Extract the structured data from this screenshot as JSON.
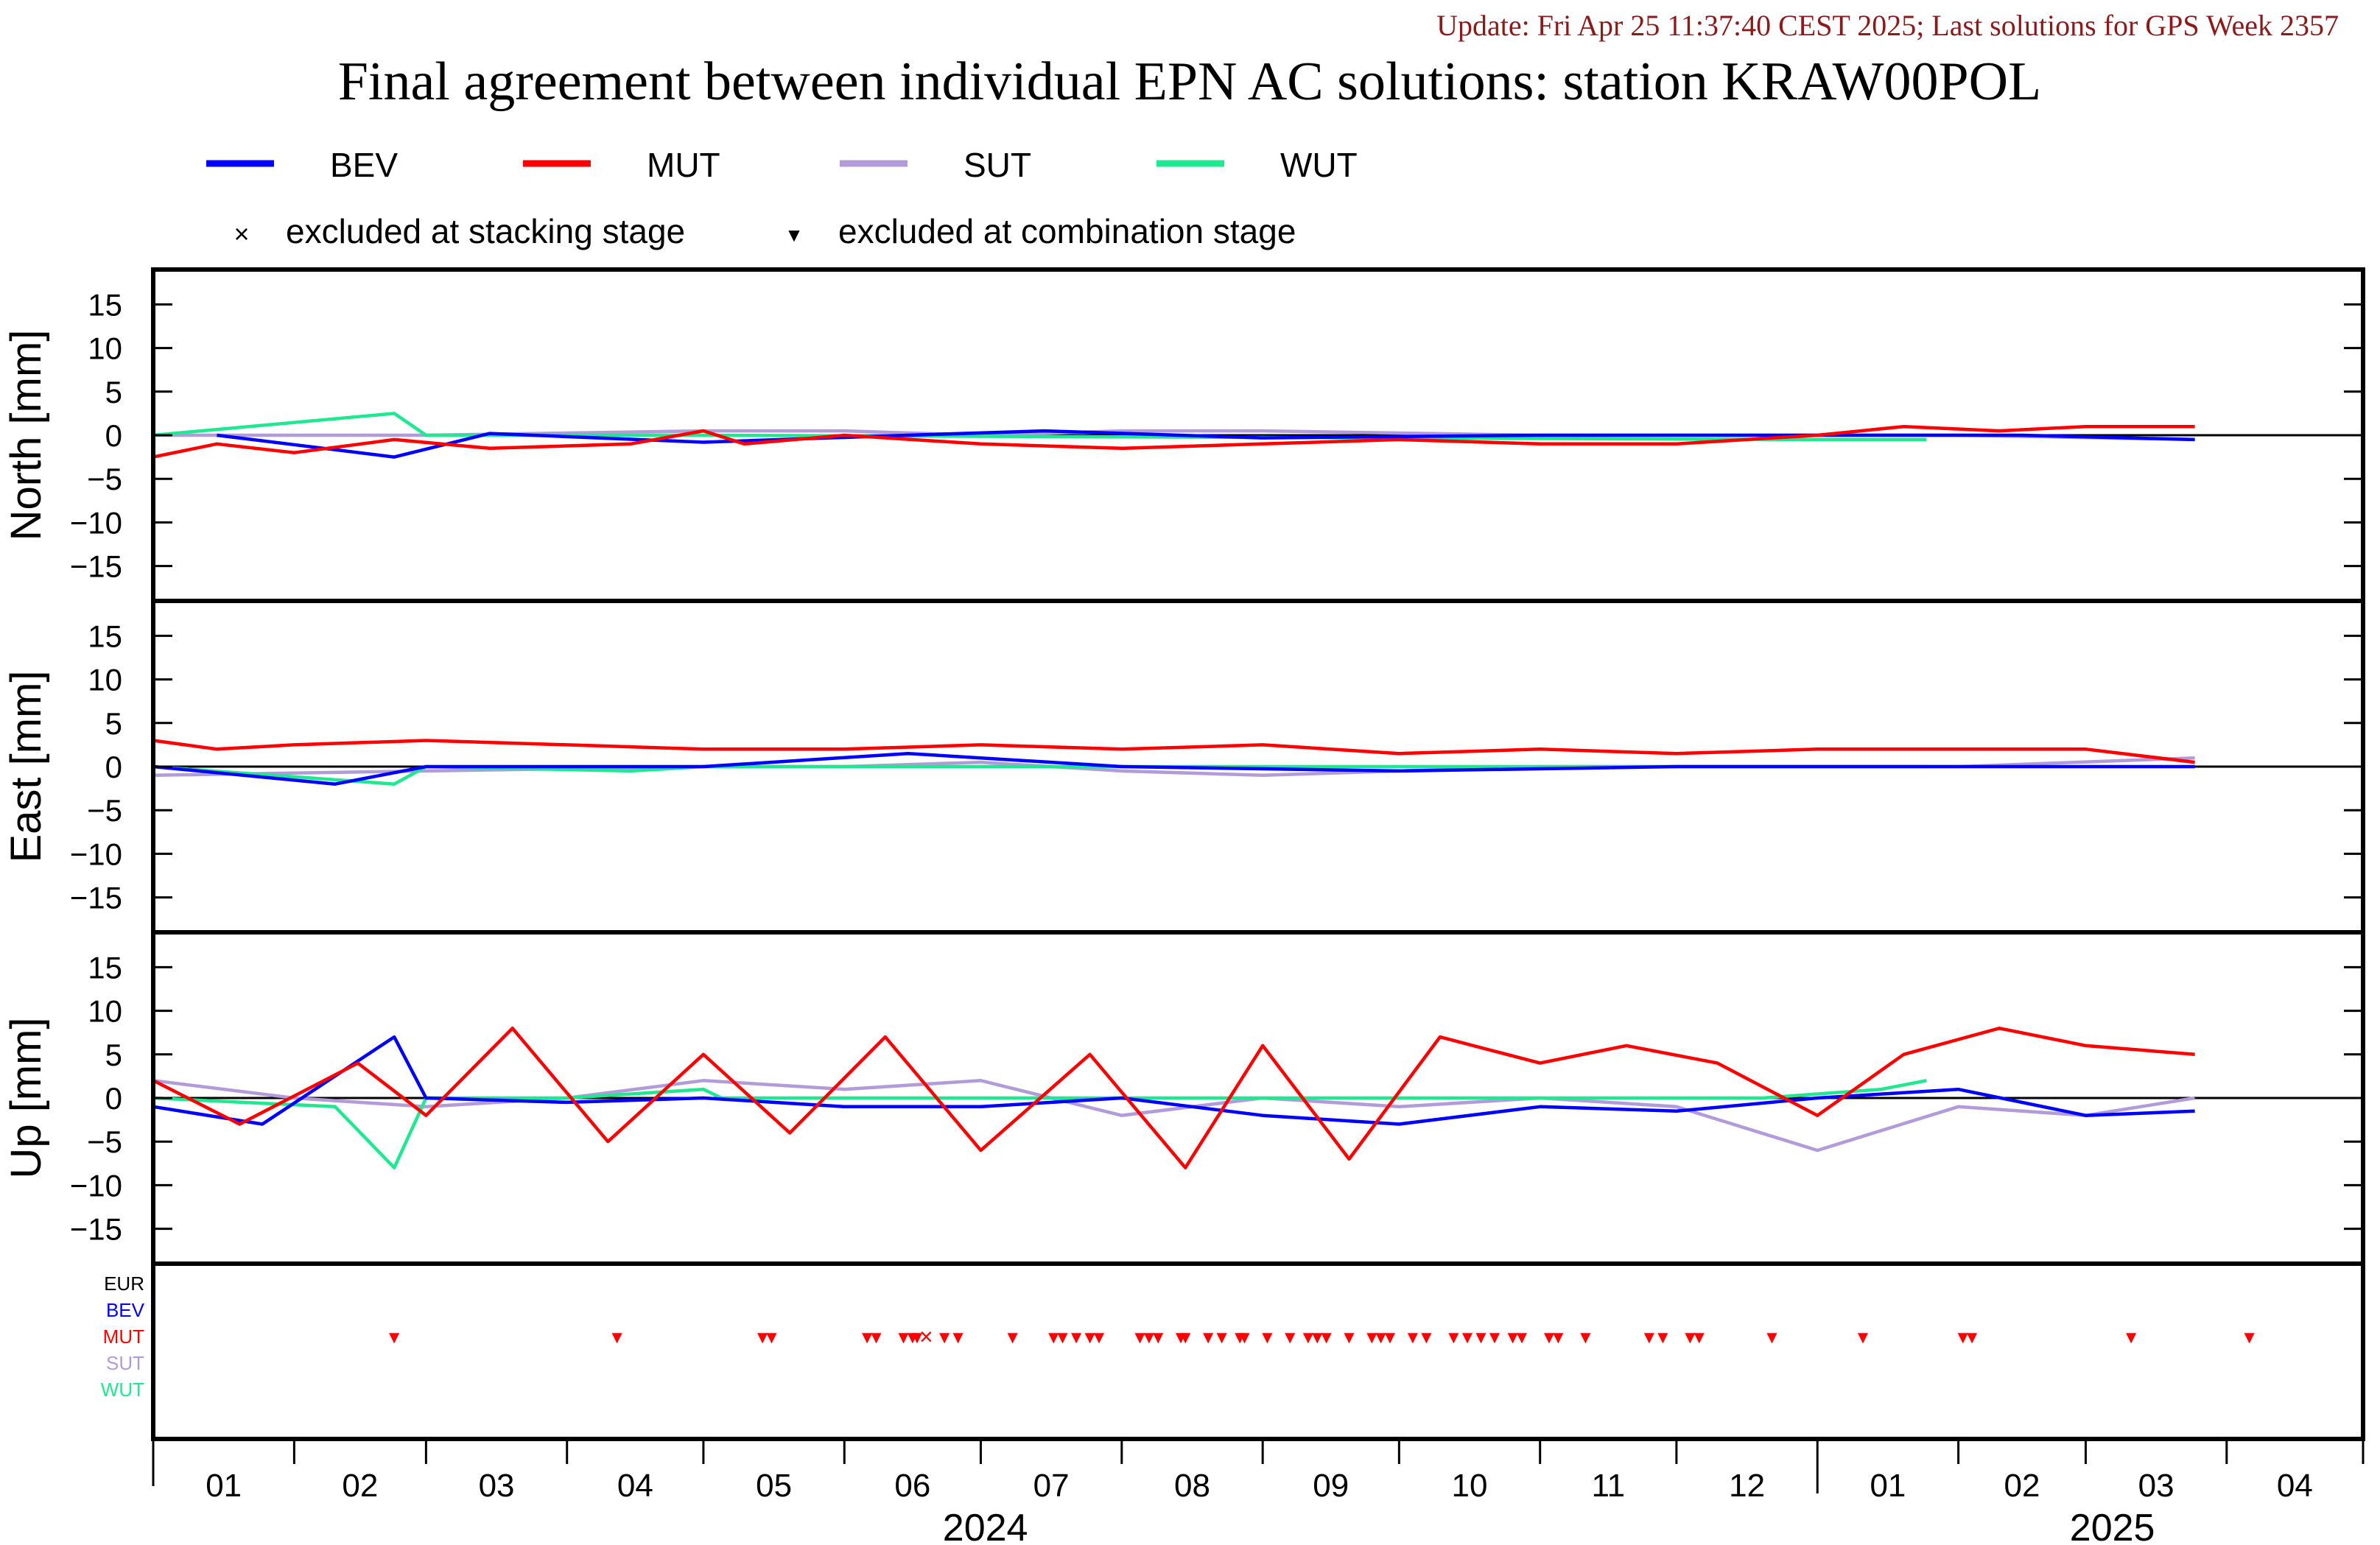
{
  "header": {
    "update_text": "Update: Fri Apr 25 11:37:40 CEST 2025; Last solutions for GPS Week 2357",
    "update_color": "#8b1a1a",
    "title": "Final agreement between individual EPN AC solutions: station KRAW00POL"
  },
  "legend": {
    "series": [
      {
        "name": "BEV",
        "color": "#0000ff"
      },
      {
        "name": "MUT",
        "color": "#ff0000"
      },
      {
        "name": "SUT",
        "color": "#b19cd9"
      },
      {
        "name": "WUT",
        "color": "#1ee890"
      }
    ],
    "markers": [
      {
        "symbol": "×",
        "label": "excluded at stacking stage"
      },
      {
        "symbol": "▼",
        "label": "excluded at combination stage"
      }
    ]
  },
  "chart_data": {
    "type": "line",
    "x_axis": {
      "month_ticks": [
        "01",
        "02",
        "03",
        "04",
        "05",
        "06",
        "07",
        "08",
        "09",
        "10",
        "11",
        "12",
        "01",
        "02",
        "03",
        "04"
      ],
      "years": [
        "2024",
        "2025"
      ],
      "range": [
        "2024-01-01",
        "2025-04-30"
      ]
    },
    "panels": [
      {
        "ylabel": "North [mm]",
        "ylim": [
          -19,
          19
        ],
        "yticks": [
          15,
          10,
          5,
          0,
          -5,
          -10,
          -15
        ],
        "series": [
          {
            "name": "BEV",
            "points": [
              [
                "2024-01-15",
                0.0
              ],
              [
                "2024-02-23",
                -2.5
              ],
              [
                "2024-03-15",
                0.2
              ],
              [
                "2024-05-01",
                -0.8
              ],
              [
                "2024-06-15",
                0.0
              ],
              [
                "2024-07-15",
                0.5
              ],
              [
                "2024-09-01",
                -0.3
              ],
              [
                "2024-11-01",
                0.0
              ],
              [
                "2025-01-01",
                0.0
              ],
              [
                "2025-02-15",
                0.0
              ],
              [
                "2025-03-25",
                -0.5
              ]
            ]
          },
          {
            "name": "MUT",
            "points": [
              [
                "2024-01-01",
                -2.5
              ],
              [
                "2024-01-15",
                -1.0
              ],
              [
                "2024-02-01",
                -2.0
              ],
              [
                "2024-02-23",
                -0.5
              ],
              [
                "2024-03-15",
                -1.5
              ],
              [
                "2024-04-15",
                -1.0
              ],
              [
                "2024-05-01",
                0.5
              ],
              [
                "2024-05-10",
                -1.0
              ],
              [
                "2024-06-01",
                0.0
              ],
              [
                "2024-07-01",
                -1.0
              ],
              [
                "2024-08-01",
                -1.5
              ],
              [
                "2024-09-01",
                -1.0
              ],
              [
                "2024-10-01",
                -0.5
              ],
              [
                "2024-11-01",
                -1.0
              ],
              [
                "2024-12-01",
                -1.0
              ],
              [
                "2025-01-01",
                0.0
              ],
              [
                "2025-01-20",
                1.0
              ],
              [
                "2025-02-10",
                0.5
              ],
              [
                "2025-03-01",
                1.0
              ],
              [
                "2025-03-25",
                1.0
              ]
            ]
          },
          {
            "name": "SUT",
            "points": [
              [
                "2024-01-01",
                0.0
              ],
              [
                "2024-03-01",
                0.0
              ],
              [
                "2024-05-01",
                0.5
              ],
              [
                "2024-06-01",
                0.5
              ],
              [
                "2024-07-01",
                0.0
              ],
              [
                "2024-08-01",
                0.5
              ],
              [
                "2024-09-01",
                0.5
              ],
              [
                "2024-11-01",
                0.0
              ],
              [
                "2025-01-01",
                0.0
              ],
              [
                "2025-02-01",
                0.0
              ],
              [
                "2025-03-25",
                -0.5
              ]
            ]
          },
          {
            "name": "WUT",
            "points": [
              [
                "2024-01-01",
                0.0
              ],
              [
                "2024-02-23",
                2.5
              ],
              [
                "2024-03-01",
                0.0
              ],
              [
                "2024-04-15",
                0.0
              ],
              [
                "2024-05-01",
                0.0
              ],
              [
                "2025-01-01",
                -0.5
              ],
              [
                "2025-01-25",
                -0.5
              ]
            ]
          }
        ]
      },
      {
        "ylabel": "East [mm]",
        "ylim": [
          -19,
          19
        ],
        "yticks": [
          15,
          10,
          5,
          0,
          -5,
          -10,
          -15
        ],
        "series": [
          {
            "name": "BEV",
            "points": [
              [
                "2024-01-01",
                0.0
              ],
              [
                "2024-02-10",
                -2.0
              ],
              [
                "2024-03-01",
                0.0
              ],
              [
                "2024-05-01",
                0.0
              ],
              [
                "2024-06-15",
                1.5
              ],
              [
                "2024-08-01",
                0.0
              ],
              [
                "2024-10-01",
                -0.5
              ],
              [
                "2024-12-01",
                0.0
              ],
              [
                "2025-01-15",
                0.0
              ],
              [
                "2025-03-25",
                0.0
              ]
            ]
          },
          {
            "name": "MUT",
            "points": [
              [
                "2024-01-01",
                3.0
              ],
              [
                "2024-01-15",
                2.0
              ],
              [
                "2024-02-01",
                2.5
              ],
              [
                "2024-03-01",
                3.0
              ],
              [
                "2024-04-01",
                2.5
              ],
              [
                "2024-05-01",
                2.0
              ],
              [
                "2024-06-01",
                2.0
              ],
              [
                "2024-07-01",
                2.5
              ],
              [
                "2024-08-01",
                2.0
              ],
              [
                "2024-09-01",
                2.5
              ],
              [
                "2024-10-01",
                1.5
              ],
              [
                "2024-11-01",
                2.0
              ],
              [
                "2024-12-01",
                1.5
              ],
              [
                "2025-01-01",
                2.0
              ],
              [
                "2025-02-01",
                2.0
              ],
              [
                "2025-03-01",
                2.0
              ],
              [
                "2025-03-25",
                0.5
              ]
            ]
          },
          {
            "name": "SUT",
            "points": [
              [
                "2024-01-01",
                -1.0
              ],
              [
                "2024-03-01",
                -0.5
              ],
              [
                "2024-05-01",
                0.0
              ],
              [
                "2024-06-01",
                0.0
              ],
              [
                "2024-07-01",
                0.5
              ],
              [
                "2024-08-01",
                -0.5
              ],
              [
                "2024-09-01",
                -1.0
              ],
              [
                "2024-10-01",
                -0.5
              ],
              [
                "2024-11-01",
                0.0
              ],
              [
                "2025-01-01",
                0.0
              ],
              [
                "2025-02-01",
                0.0
              ],
              [
                "2025-03-25",
                1.0
              ]
            ]
          },
          {
            "name": "WUT",
            "points": [
              [
                "2024-01-01",
                0.0
              ],
              [
                "2024-02-23",
                -2.0
              ],
              [
                "2024-03-01",
                0.0
              ],
              [
                "2024-04-15",
                -0.5
              ],
              [
                "2024-05-01",
                0.0
              ],
              [
                "2025-01-01",
                0.0
              ],
              [
                "2025-01-25",
                0.0
              ]
            ]
          }
        ]
      },
      {
        "ylabel": "Up [mm]",
        "ylim": [
          -19,
          19
        ],
        "yticks": [
          15,
          10,
          5,
          0,
          -5,
          -10,
          -15
        ],
        "series": [
          {
            "name": "BEV",
            "points": [
              [
                "2024-01-01",
                -1.0
              ],
              [
                "2024-01-25",
                -3.0
              ],
              [
                "2024-02-23",
                7.0
              ],
              [
                "2024-03-01",
                0.0
              ],
              [
                "2024-04-01",
                -0.5
              ],
              [
                "2024-05-01",
                0.0
              ],
              [
                "2024-06-01",
                -1.0
              ],
              [
                "2024-07-01",
                -1.0
              ],
              [
                "2024-08-01",
                0.0
              ],
              [
                "2024-09-01",
                -2.0
              ],
              [
                "2024-10-01",
                -3.0
              ],
              [
                "2024-11-01",
                -1.0
              ],
              [
                "2024-12-01",
                -1.5
              ],
              [
                "2025-01-01",
                0.0
              ],
              [
                "2025-02-01",
                1.0
              ],
              [
                "2025-03-01",
                -2.0
              ],
              [
                "2025-03-25",
                -1.5
              ]
            ]
          },
          {
            "name": "MUT",
            "points": [
              [
                "2024-01-01",
                2.0
              ],
              [
                "2024-01-20",
                -3.0
              ],
              [
                "2024-02-15",
                4.0
              ],
              [
                "2024-03-01",
                -2.0
              ],
              [
                "2024-03-20",
                8.0
              ],
              [
                "2024-04-10",
                -5.0
              ],
              [
                "2024-05-01",
                5.0
              ],
              [
                "2024-05-20",
                -4.0
              ],
              [
                "2024-06-10",
                7.0
              ],
              [
                "2024-07-01",
                -6.0
              ],
              [
                "2024-07-25",
                5.0
              ],
              [
                "2024-08-15",
                -8.0
              ],
              [
                "2024-09-01",
                6.0
              ],
              [
                "2024-09-20",
                -7.0
              ],
              [
                "2024-10-10",
                7.0
              ],
              [
                "2024-11-01",
                4.0
              ],
              [
                "2024-11-20",
                6.0
              ],
              [
                "2024-12-10",
                4.0
              ],
              [
                "2025-01-01",
                -2.0
              ],
              [
                "2025-01-20",
                5.0
              ],
              [
                "2025-02-10",
                8.0
              ],
              [
                "2025-03-01",
                6.0
              ],
              [
                "2025-03-25",
                5.0
              ]
            ]
          },
          {
            "name": "SUT",
            "points": [
              [
                "2024-01-01",
                2.0
              ],
              [
                "2024-02-01",
                0.0
              ],
              [
                "2024-03-01",
                -1.0
              ],
              [
                "2024-04-01",
                0.0
              ],
              [
                "2024-05-01",
                2.0
              ],
              [
                "2024-06-01",
                1.0
              ],
              [
                "2024-07-01",
                2.0
              ],
              [
                "2024-08-01",
                -2.0
              ],
              [
                "2024-09-01",
                0.0
              ],
              [
                "2024-10-01",
                -1.0
              ],
              [
                "2024-11-01",
                0.0
              ],
              [
                "2024-12-01",
                -1.0
              ],
              [
                "2025-01-01",
                -6.0
              ],
              [
                "2025-02-01",
                -1.0
              ],
              [
                "2025-03-01",
                -2.0
              ],
              [
                "2025-03-25",
                0.0
              ]
            ]
          },
          {
            "name": "WUT",
            "points": [
              [
                "2024-01-01",
                0.0
              ],
              [
                "2024-02-10",
                -1.0
              ],
              [
                "2024-02-23",
                -8.0
              ],
              [
                "2024-03-01",
                0.0
              ],
              [
                "2024-04-01",
                0.0
              ],
              [
                "2024-05-01",
                1.0
              ],
              [
                "2024-05-05",
                0.0
              ],
              [
                "2024-12-20",
                0.0
              ],
              [
                "2025-01-15",
                1.0
              ],
              [
                "2025-01-25",
                2.0
              ]
            ]
          }
        ]
      }
    ],
    "exclusions": {
      "rows": [
        {
          "name": "EUR",
          "color": "#000000"
        },
        {
          "name": "BEV",
          "color": "#0000ff"
        },
        {
          "name": "MUT",
          "color": "#ff0000"
        },
        {
          "name": "SUT",
          "color": "#b19cd9"
        },
        {
          "name": "WUT",
          "color": "#1ee890"
        }
      ],
      "combination_stage": [
        {
          "ac": "MUT",
          "dates": [
            "2024-02-23",
            "2024-04-12",
            "2024-05-14",
            "2024-05-16",
            "2024-06-06",
            "2024-06-08",
            "2024-06-14",
            "2024-06-16",
            "2024-06-17",
            "2024-06-23",
            "2024-06-26",
            "2024-07-08",
            "2024-07-17",
            "2024-07-19",
            "2024-07-22",
            "2024-07-25",
            "2024-07-27",
            "2024-08-05",
            "2024-08-07",
            "2024-08-09",
            "2024-08-14",
            "2024-08-15",
            "2024-08-20",
            "2024-08-23",
            "2024-08-27",
            "2024-08-28",
            "2024-09-02",
            "2024-09-07",
            "2024-09-11",
            "2024-09-13",
            "2024-09-15",
            "2024-09-20",
            "2024-09-25",
            "2024-09-27",
            "2024-09-29",
            "2024-10-04",
            "2024-10-07",
            "2024-10-13",
            "2024-10-16",
            "2024-10-19",
            "2024-10-22",
            "2024-10-26",
            "2024-10-28",
            "2024-11-03",
            "2024-11-05",
            "2024-11-11",
            "2024-11-25",
            "2024-11-28",
            "2024-12-04",
            "2024-12-06",
            "2024-12-22",
            "2025-01-11",
            "2025-02-02",
            "2025-02-04",
            "2025-03-11",
            "2025-04-06"
          ]
        }
      ],
      "stacking_stage": [
        {
          "ac": "MUT",
          "dates": [
            "2024-06-19"
          ]
        }
      ]
    }
  }
}
